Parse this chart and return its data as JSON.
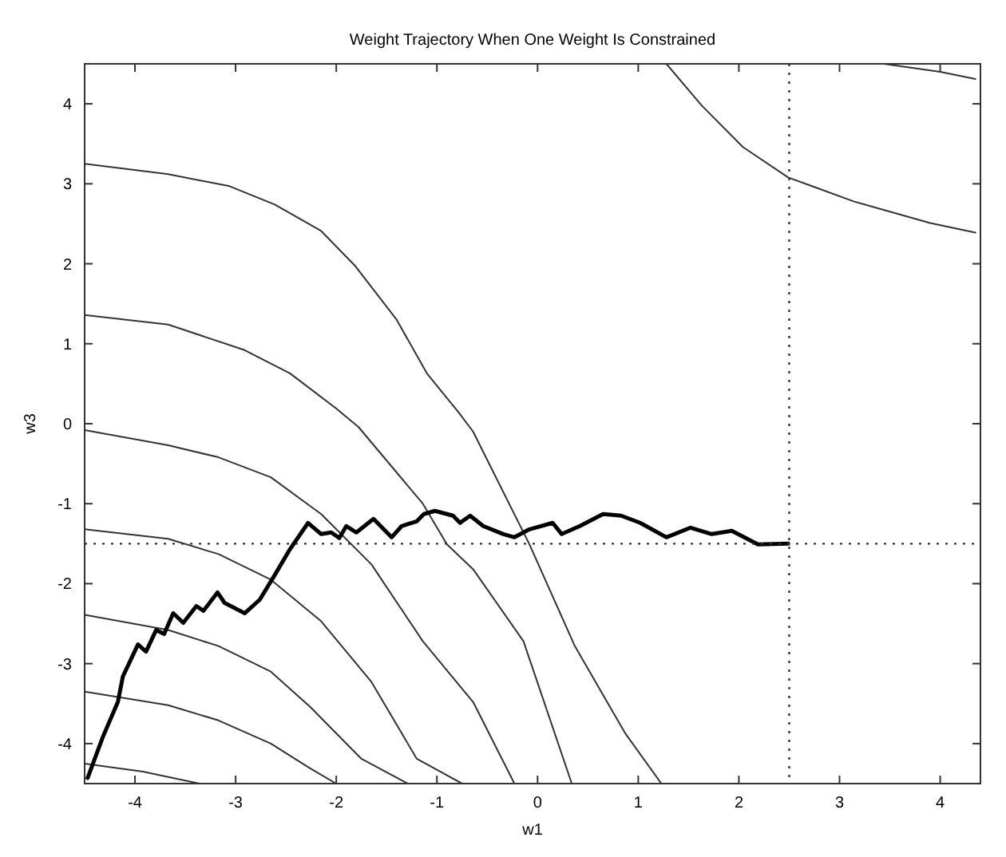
{
  "chart_data": {
    "type": "line",
    "title": "Weight Trajectory When One Weight Is Constrained",
    "xlabel": "w1",
    "ylabel": "w3",
    "xlim": [
      -4.5,
      4.4
    ],
    "ylim": [
      -4.5,
      4.5
    ],
    "xticks": [
      -4,
      -3,
      -2,
      -1,
      0,
      1,
      2,
      3,
      4
    ],
    "yticks": [
      -4,
      -3,
      -2,
      -1,
      0,
      1,
      2,
      3,
      4
    ],
    "grid": false,
    "marker": "none",
    "ref_lines": [
      {
        "axis": "x",
        "value": 2.5,
        "line_style": "dotted",
        "color": "#333333"
      },
      {
        "axis": "y",
        "value": -1.5,
        "line_style": "dotted",
        "color": "#333333"
      }
    ],
    "series": [
      {
        "color": "#333333",
        "x": [
          -4.5,
          -3.67,
          -3.06,
          -2.61,
          -2.15,
          -1.81,
          -1.4,
          -1.1,
          -0.79,
          -0.64,
          -0.08,
          0.37,
          0.87,
          1.23
        ],
        "values": [
          3.25,
          3.12,
          2.97,
          2.74,
          2.41,
          1.97,
          1.3,
          0.63,
          0.15,
          -0.1,
          -1.51,
          -2.78,
          -3.87,
          -4.5
        ]
      },
      {
        "color": "#333333",
        "x": [
          -4.5,
          -3.67,
          -2.91,
          -2.46,
          -2.0,
          -1.78,
          -1.14,
          -0.9,
          -0.64,
          -0.14,
          0.34
        ],
        "values": [
          1.36,
          1.24,
          0.92,
          0.63,
          0.19,
          -0.04,
          -1.0,
          -1.51,
          -1.82,
          -2.72,
          -4.5
        ]
      },
      {
        "color": "#333333",
        "x": [
          -4.5,
          -3.67,
          -3.17,
          -2.65,
          -2.15,
          -1.65,
          -1.14,
          -0.64,
          -0.23
        ],
        "values": [
          -0.08,
          -0.27,
          -0.42,
          -0.67,
          -1.13,
          -1.76,
          -2.72,
          -3.48,
          -4.5
        ]
      },
      {
        "color": "#333333",
        "x": [
          -4.5,
          -3.67,
          -3.17,
          -2.65,
          -2.15,
          -1.65,
          -1.2,
          -0.75
        ],
        "values": [
          -1.32,
          -1.44,
          -1.63,
          -1.95,
          -2.47,
          -3.23,
          -4.19,
          -4.5
        ]
      },
      {
        "color": "#333333",
        "x": [
          -4.5,
          -3.67,
          -3.17,
          -2.65,
          -2.26,
          -1.75,
          -1.29
        ],
        "values": [
          -2.39,
          -2.58,
          -2.78,
          -3.1,
          -3.54,
          -4.19,
          -4.5
        ]
      },
      {
        "color": "#333333",
        "x": [
          -4.5,
          -3.67,
          -3.17,
          -2.65,
          -2.26,
          -2.0
        ],
        "values": [
          -3.35,
          -3.52,
          -3.71,
          -4.0,
          -4.31,
          -4.5
        ]
      },
      {
        "color": "#333333",
        "x": [
          -4.5,
          -3.92,
          -3.36
        ],
        "values": [
          -4.25,
          -4.35,
          -4.5
        ]
      },
      {
        "color": "#333333",
        "x": [
          1.28,
          1.63,
          2.04,
          2.49,
          3.14,
          3.9,
          4.35
        ],
        "values": [
          4.5,
          3.98,
          3.46,
          3.08,
          2.78,
          2.51,
          2.39
        ]
      },
      {
        "color": "#333333",
        "x": [
          3.44,
          4.0,
          4.35
        ],
        "values": [
          4.5,
          4.4,
          4.31
        ]
      },
      {
        "color": "#000000",
        "x": [
          -4.47,
          -4.32,
          -4.17,
          -4.12,
          -3.97,
          -3.89,
          -3.79,
          -3.71,
          -3.62,
          -3.52,
          -3.39,
          -3.32,
          -3.18,
          -3.11,
          -2.91,
          -2.76,
          -2.61,
          -2.46,
          -2.28,
          -2.15,
          -2.05,
          -1.97,
          -1.9,
          -1.8,
          -1.63,
          -1.45,
          -1.35,
          -1.2,
          -1.13,
          -1.02,
          -0.84,
          -0.77,
          -0.67,
          -0.54,
          -0.34,
          -0.23,
          -0.08,
          0.15,
          0.24,
          0.42,
          0.65,
          0.83,
          1.02,
          1.28,
          1.52,
          1.73,
          1.93,
          2.19,
          2.49
        ],
        "values": [
          -4.43,
          -3.92,
          -3.48,
          -3.16,
          -2.76,
          -2.85,
          -2.58,
          -2.63,
          -2.37,
          -2.49,
          -2.28,
          -2.34,
          -2.11,
          -2.24,
          -2.37,
          -2.2,
          -1.89,
          -1.57,
          -1.24,
          -1.38,
          -1.36,
          -1.43,
          -1.28,
          -1.36,
          -1.19,
          -1.42,
          -1.28,
          -1.22,
          -1.13,
          -1.09,
          -1.15,
          -1.24,
          -1.15,
          -1.28,
          -1.38,
          -1.42,
          -1.32,
          -1.24,
          -1.38,
          -1.28,
          -1.13,
          -1.15,
          -1.24,
          -1.42,
          -1.3,
          -1.38,
          -1.34,
          -1.51,
          -1.5
        ]
      }
    ]
  }
}
